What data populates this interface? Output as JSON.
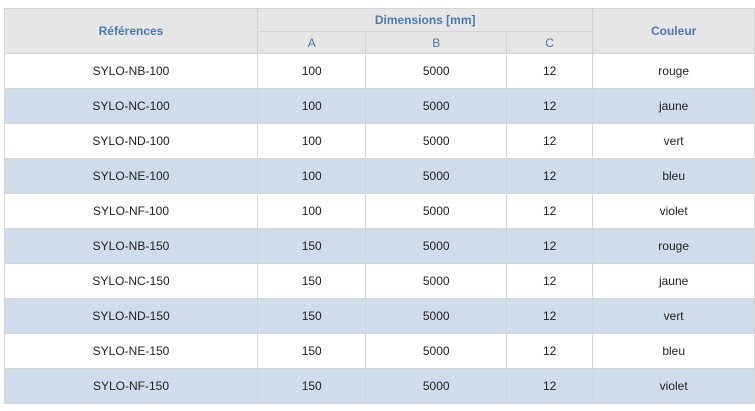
{
  "header": {
    "references": "Références",
    "dimensions": "Dimensions [mm]",
    "col_a": "A",
    "col_b": "B",
    "col_c": "C",
    "color": "Couleur"
  },
  "rows": [
    {
      "ref": "SYLO-NB-100",
      "a": "100",
      "b": "5000",
      "c": "12",
      "color": "rouge"
    },
    {
      "ref": "SYLO-NC-100",
      "a": "100",
      "b": "5000",
      "c": "12",
      "color": "jaune"
    },
    {
      "ref": "SYLO-ND-100",
      "a": "100",
      "b": "5000",
      "c": "12",
      "color": "vert"
    },
    {
      "ref": "SYLO-NE-100",
      "a": "100",
      "b": "5000",
      "c": "12",
      "color": "bleu"
    },
    {
      "ref": "SYLO-NF-100",
      "a": "100",
      "b": "5000",
      "c": "12",
      "color": "violet"
    },
    {
      "ref": "SYLO-NB-150",
      "a": "150",
      "b": "5000",
      "c": "12",
      "color": "rouge"
    },
    {
      "ref": "SYLO-NC-150",
      "a": "150",
      "b": "5000",
      "c": "12",
      "color": "jaune"
    },
    {
      "ref": "SYLO-ND-150",
      "a": "150",
      "b": "5000",
      "c": "12",
      "color": "vert"
    },
    {
      "ref": "SYLO-NE-150",
      "a": "150",
      "b": "5000",
      "c": "12",
      "color": "bleu"
    },
    {
      "ref": "SYLO-NF-150",
      "a": "150",
      "b": "5000",
      "c": "12",
      "color": "violet"
    }
  ],
  "colors": {
    "header_bg": "#e6e6e6",
    "header_text": "#4b79ad",
    "stripe_bg": "#cfdceb",
    "border": "#d4d4d4"
  }
}
